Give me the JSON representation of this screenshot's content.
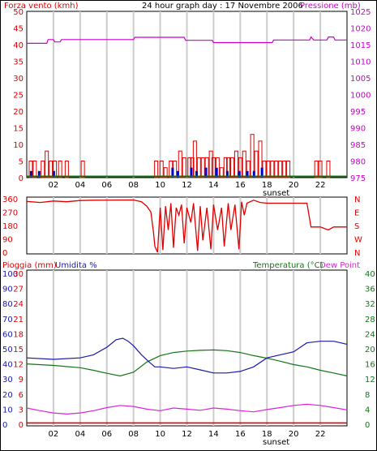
{
  "header": {
    "wind_title": "Forza vento (kmh)",
    "main_title": "24 hour graph day : 17 Novembre 2006",
    "pressure_title": "Pressione (mb)"
  },
  "colors": {
    "wind": "#e00000",
    "gust": "#0000cc",
    "pressure": "#cc00cc",
    "direction": "#e00000",
    "humidity": "#1a1aa6",
    "temperature": "#137513",
    "rain": "#e00000",
    "dewpoint": "#dd22dd",
    "grid": "#cccccc",
    "border": "#000000"
  },
  "x_ticks": [
    "02",
    "04",
    "06",
    "08",
    "10",
    "12",
    "14",
    "16",
    "18",
    "20",
    "22"
  ],
  "sunset_label": "sunset",
  "chart_data": [
    {
      "type": "bar",
      "name": "wind",
      "x_range": [
        0,
        24
      ],
      "y_left": {
        "label": "Forza vento (kmh)",
        "ticks": [
          0,
          5,
          10,
          15,
          20,
          25,
          30,
          35,
          40,
          45,
          50
        ],
        "range": [
          0,
          50
        ]
      },
      "y_right": {
        "label": "Pressione (mb)",
        "ticks": [
          975,
          980,
          985,
          990,
          995,
          1000,
          1005,
          1010,
          1015,
          1020,
          1025
        ],
        "range": [
          975,
          1025
        ]
      },
      "wind_speed": [
        [
          0.3,
          5
        ],
        [
          0.6,
          5
        ],
        [
          1.2,
          5
        ],
        [
          1.5,
          8
        ],
        [
          1.8,
          5
        ],
        [
          2.1,
          5
        ],
        [
          2.5,
          5
        ],
        [
          3.0,
          5
        ],
        [
          4.2,
          5
        ],
        [
          9.7,
          5
        ],
        [
          10.1,
          5
        ],
        [
          10.4,
          3
        ],
        [
          10.8,
          5
        ],
        [
          11.1,
          5
        ],
        [
          11.5,
          8
        ],
        [
          11.8,
          6
        ],
        [
          12.2,
          6
        ],
        [
          12.4,
          6
        ],
        [
          12.6,
          11
        ],
        [
          12.9,
          6
        ],
        [
          13.2,
          6
        ],
        [
          13.5,
          6
        ],
        [
          13.8,
          8
        ],
        [
          14.0,
          6
        ],
        [
          14.3,
          6
        ],
        [
          14.6,
          3
        ],
        [
          14.9,
          6
        ],
        [
          15.1,
          6
        ],
        [
          15.4,
          6
        ],
        [
          15.7,
          8
        ],
        [
          16.0,
          6
        ],
        [
          16.3,
          8
        ],
        [
          16.6,
          5
        ],
        [
          16.9,
          13
        ],
        [
          17.2,
          8
        ],
        [
          17.5,
          11
        ],
        [
          17.8,
          5
        ],
        [
          18.1,
          5
        ],
        [
          18.4,
          5
        ],
        [
          18.7,
          5
        ],
        [
          19.0,
          5
        ],
        [
          19.3,
          5
        ],
        [
          19.6,
          5
        ],
        [
          21.7,
          5
        ],
        [
          22.0,
          5
        ],
        [
          22.6,
          5
        ]
      ],
      "wind_gust": [
        [
          0.3,
          2
        ],
        [
          0.9,
          2
        ],
        [
          2.0,
          2
        ],
        [
          10.9,
          3
        ],
        [
          11.3,
          2
        ],
        [
          12.3,
          3
        ],
        [
          12.7,
          2
        ],
        [
          13.4,
          3
        ],
        [
          14.2,
          3
        ],
        [
          15.0,
          2
        ],
        [
          15.9,
          2
        ],
        [
          16.5,
          2
        ],
        [
          17.0,
          2
        ],
        [
          17.6,
          3
        ]
      ],
      "pressure": [
        [
          0,
          1015.4
        ],
        [
          1.5,
          1015.4
        ],
        [
          1.6,
          1016.5
        ],
        [
          2.0,
          1016.5
        ],
        [
          2.1,
          1015.8
        ],
        [
          2.5,
          1015.8
        ],
        [
          2.6,
          1016.5
        ],
        [
          8.0,
          1016.5
        ],
        [
          8.1,
          1017.2
        ],
        [
          11.8,
          1017.2
        ],
        [
          11.9,
          1016.3
        ],
        [
          13.9,
          1016.3
        ],
        [
          14.0,
          1015.6
        ],
        [
          18.4,
          1015.6
        ],
        [
          18.5,
          1016.4
        ],
        [
          21.2,
          1016.4
        ],
        [
          21.3,
          1017.3
        ],
        [
          21.5,
          1016.4
        ],
        [
          22.5,
          1016.4
        ],
        [
          22.6,
          1017.3
        ],
        [
          23.0,
          1017.3
        ],
        [
          23.1,
          1016.4
        ],
        [
          24,
          1016.4
        ]
      ]
    },
    {
      "type": "line",
      "name": "wind_direction",
      "x_range": [
        0,
        24
      ],
      "y_left": {
        "ticks": [
          0,
          90,
          180,
          270,
          360
        ],
        "range": [
          0,
          360
        ]
      },
      "y_right": {
        "ticks": [
          "N",
          "W",
          "S",
          "E",
          "N"
        ]
      },
      "values": [
        [
          0,
          342
        ],
        [
          1.0,
          335
        ],
        [
          2.0,
          345
        ],
        [
          3.0,
          340
        ],
        [
          4.0,
          348
        ],
        [
          5.0,
          350
        ],
        [
          8.0,
          352
        ],
        [
          8.6,
          340
        ],
        [
          9.0,
          310
        ],
        [
          9.3,
          270
        ],
        [
          9.5,
          130
        ],
        [
          9.6,
          40
        ],
        [
          9.8,
          0
        ],
        [
          10.0,
          300
        ],
        [
          10.2,
          15
        ],
        [
          10.4,
          310
        ],
        [
          10.6,
          150
        ],
        [
          10.8,
          330
        ],
        [
          11.0,
          30
        ],
        [
          11.2,
          300
        ],
        [
          11.4,
          250
        ],
        [
          11.6,
          320
        ],
        [
          11.8,
          60
        ],
        [
          12.0,
          300
        ],
        [
          12.3,
          200
        ],
        [
          12.5,
          330
        ],
        [
          12.8,
          10
        ],
        [
          13.0,
          310
        ],
        [
          13.2,
          80
        ],
        [
          13.5,
          300
        ],
        [
          13.8,
          20
        ],
        [
          14.0,
          320
        ],
        [
          14.3,
          150
        ],
        [
          14.6,
          300
        ],
        [
          14.8,
          40
        ],
        [
          15.1,
          330
        ],
        [
          15.3,
          150
        ],
        [
          15.6,
          320
        ],
        [
          15.9,
          20
        ],
        [
          16.1,
          340
        ],
        [
          16.3,
          250
        ],
        [
          16.5,
          330
        ],
        [
          17.0,
          350
        ],
        [
          17.5,
          335
        ],
        [
          18.0,
          330
        ],
        [
          19.0,
          330
        ],
        [
          20.0,
          330
        ],
        [
          21.0,
          330
        ],
        [
          21.3,
          170
        ],
        [
          22.0,
          170
        ],
        [
          22.6,
          150
        ],
        [
          23.0,
          170
        ],
        [
          24,
          170
        ]
      ]
    },
    {
      "type": "line",
      "name": "humidity_temperature",
      "x_range": [
        0,
        24
      ],
      "y_left_rain": {
        "label": "Pioggia (mm)",
        "ticks": [
          0,
          3,
          6,
          9,
          12,
          15,
          18,
          21,
          24,
          27,
          30
        ],
        "range": [
          0,
          30
        ]
      },
      "y_left_humidity": {
        "label": "Umidita %",
        "ticks": [
          0,
          10,
          20,
          30,
          40,
          50,
          60,
          70,
          80,
          90,
          100
        ],
        "range": [
          0,
          100
        ]
      },
      "y_right": {
        "label": "Temperatura (°C)",
        "label2": "Dew Point",
        "ticks": [
          0,
          4,
          8,
          12,
          16,
          20,
          24,
          28,
          32,
          36,
          40
        ],
        "range": [
          0,
          40
        ]
      },
      "series": [
        {
          "name": "Umidita %",
          "values": [
            [
              0,
              44
            ],
            [
              2.0,
              43
            ],
            [
              4.0,
              44
            ],
            [
              5.0,
              46
            ],
            [
              6.0,
              51
            ],
            [
              6.7,
              56
            ],
            [
              7.2,
              57
            ],
            [
              7.6,
              55
            ],
            [
              8.0,
              52
            ],
            [
              8.6,
              46
            ],
            [
              9.2,
              41
            ],
            [
              9.6,
              38
            ],
            [
              10.0,
              38
            ],
            [
              11.0,
              37
            ],
            [
              12.0,
              38
            ],
            [
              13.0,
              36
            ],
            [
              14.0,
              34
            ],
            [
              15.0,
              34
            ],
            [
              16.0,
              35
            ],
            [
              17.0,
              38
            ],
            [
              18.0,
              44
            ],
            [
              19.0,
              46
            ],
            [
              20.0,
              48
            ],
            [
              20.5,
              51
            ],
            [
              21.0,
              54
            ],
            [
              22.0,
              55
            ],
            [
              23.0,
              55
            ],
            [
              24,
              53
            ]
          ]
        },
        {
          "name": "Temperatura (°C)",
          "values": [
            [
              0,
              16.0
            ],
            [
              2.0,
              15.6
            ],
            [
              4.0,
              15.0
            ],
            [
              5.0,
              14.3
            ],
            [
              6.0,
              13.5
            ],
            [
              7.0,
              12.8
            ],
            [
              8.0,
              13.8
            ],
            [
              9.0,
              16.5
            ],
            [
              10.0,
              18.2
            ],
            [
              11.0,
              19.0
            ],
            [
              12.0,
              19.4
            ],
            [
              13.0,
              19.6
            ],
            [
              14.0,
              19.7
            ],
            [
              15.0,
              19.5
            ],
            [
              16.0,
              19.0
            ],
            [
              17.0,
              18.2
            ],
            [
              18.0,
              17.5
            ],
            [
              19.0,
              16.7
            ],
            [
              20.0,
              15.8
            ],
            [
              21.0,
              15.2
            ],
            [
              22.0,
              14.3
            ],
            [
              23.0,
              13.6
            ],
            [
              24,
              12.8
            ]
          ]
        },
        {
          "name": "Dew Point",
          "values": [
            [
              0,
              4.3
            ],
            [
              1.0,
              3.6
            ],
            [
              2.0,
              3.0
            ],
            [
              3.0,
              2.7
            ],
            [
              4.0,
              3.0
            ],
            [
              5.0,
              3.6
            ],
            [
              6.0,
              4.4
            ],
            [
              7.0,
              5.0
            ],
            [
              8.0,
              4.7
            ],
            [
              9.0,
              4.0
            ],
            [
              10.0,
              3.6
            ],
            [
              11.0,
              4.3
            ],
            [
              12.0,
              4.0
            ],
            [
              13.0,
              3.7
            ],
            [
              14.0,
              4.3
            ],
            [
              15.0,
              4.0
            ],
            [
              16.0,
              3.6
            ],
            [
              17.0,
              3.3
            ],
            [
              18.0,
              3.9
            ],
            [
              19.0,
              4.4
            ],
            [
              20.0,
              5.0
            ],
            [
              21.0,
              5.3
            ],
            [
              22.0,
              5.0
            ],
            [
              23.0,
              4.4
            ],
            [
              24,
              3.8
            ]
          ]
        },
        {
          "name": "Pioggia (mm)",
          "values": [
            [
              0,
              0.1
            ],
            [
              24,
              0.1
            ]
          ]
        }
      ]
    }
  ]
}
